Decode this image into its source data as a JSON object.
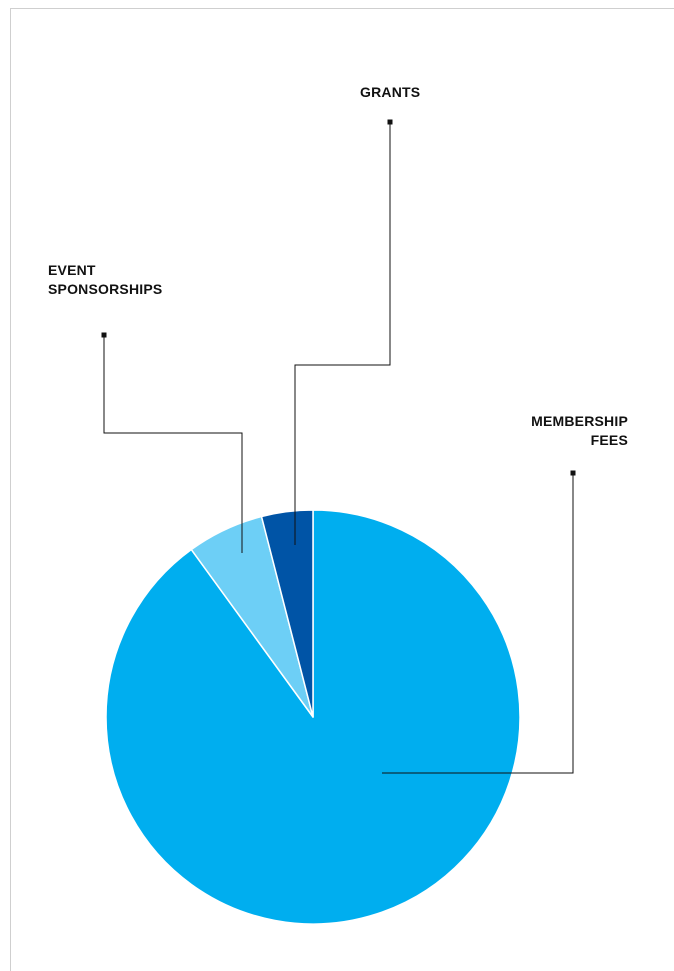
{
  "chart_data": {
    "type": "pie",
    "title": "",
    "start_angle_deg": 0,
    "direction": "clockwise",
    "slices": [
      {
        "label": [
          "MEMBERSHIP",
          "FEES"
        ],
        "value": 90,
        "color": "#00AEEF"
      },
      {
        "label": [
          "EVENT",
          "SPONSORSHIPS"
        ],
        "value": 6,
        "color": "#6DCFF6"
      },
      {
        "label": [
          "GRANTS"
        ],
        "value": 4,
        "color": "#0054A6"
      }
    ],
    "slice_border_color": "#ffffff",
    "legend": "none",
    "label_style": "callout-with-leader-lines"
  }
}
